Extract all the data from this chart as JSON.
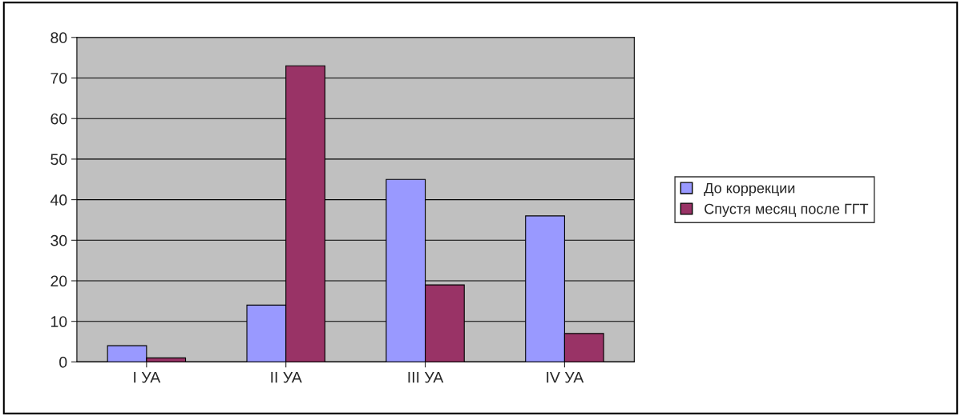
{
  "chart_data": {
    "type": "bar",
    "categories": [
      "I УА",
      "II УА",
      "III УА",
      "IV УА"
    ],
    "series": [
      {
        "name": "До коррекции",
        "color": "#9999ff",
        "values": [
          4,
          14,
          45,
          36
        ]
      },
      {
        "name": "Спустя месяц после ГГТ",
        "color": "#993366",
        "values": [
          1,
          73,
          19,
          7
        ]
      }
    ],
    "ylim": [
      0,
      80
    ],
    "yticks": [
      0,
      10,
      20,
      30,
      40,
      50,
      60,
      70,
      80
    ],
    "grid": "y",
    "legend": "right"
  }
}
